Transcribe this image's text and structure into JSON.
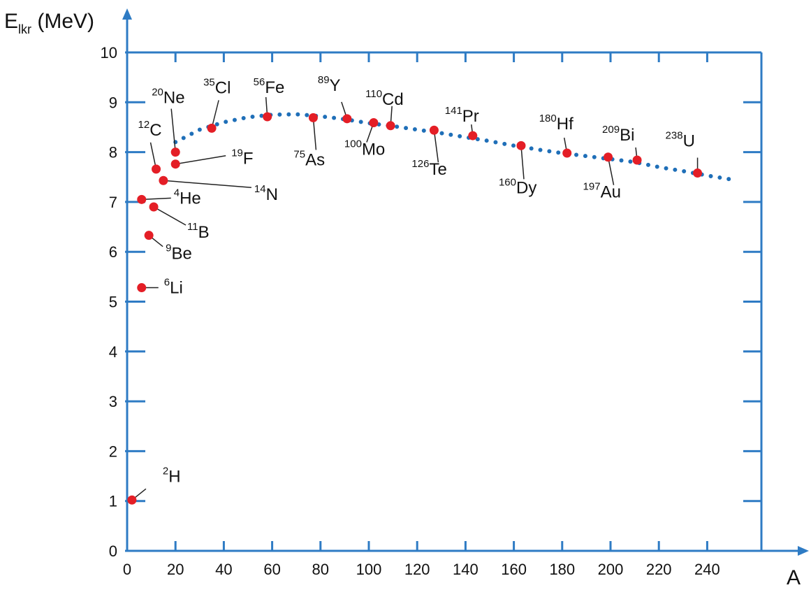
{
  "chart_data": {
    "type": "scatter",
    "title": "",
    "xlabel": "A",
    "ylabel": {
      "main": "E",
      "sub": "lkr",
      "unit": "(MeV)"
    },
    "xlim": [
      0,
      260
    ],
    "ylim": [
      0,
      10
    ],
    "xticks": [
      0,
      20,
      40,
      60,
      80,
      100,
      120,
      140,
      160,
      180,
      200,
      220,
      240
    ],
    "yticks": [
      0,
      1,
      2,
      3,
      4,
      5,
      6,
      7,
      8,
      9,
      10
    ],
    "grid": false,
    "colors": {
      "axis": "#2e7bc4",
      "points": "#e41e26",
      "curve": "#1f6fb8",
      "leader": "#222222"
    },
    "curve": {
      "name": "binding energy per nucleon trend (dotted)",
      "x": [
        20,
        30,
        40,
        50,
        60,
        70,
        80,
        90,
        100,
        110,
        120,
        130,
        140,
        150,
        160,
        170,
        180,
        190,
        200,
        210,
        220,
        230,
        240,
        250
      ],
      "y": [
        8.2,
        8.45,
        8.6,
        8.7,
        8.75,
        8.76,
        8.72,
        8.66,
        8.58,
        8.52,
        8.45,
        8.38,
        8.3,
        8.22,
        8.13,
        8.05,
        7.98,
        7.92,
        7.86,
        7.8,
        7.7,
        7.62,
        7.53,
        7.45
      ]
    },
    "series": [
      {
        "name": "nuclides",
        "points": [
          {
            "x": 2,
            "y": 1.02,
            "mass": "2",
            "symbol": "H"
          },
          {
            "x": 6,
            "y": 5.28,
            "mass": "6",
            "symbol": "Li"
          },
          {
            "x": 9,
            "y": 6.33,
            "mass": "9",
            "symbol": "Be"
          },
          {
            "x": 11,
            "y": 6.9,
            "mass": "11",
            "symbol": "B"
          },
          {
            "x": 6,
            "y": 7.05,
            "mass": "4",
            "symbol": "He"
          },
          {
            "x": 12,
            "y": 7.66,
            "mass": "12",
            "symbol": "C"
          },
          {
            "x": 15,
            "y": 7.43,
            "mass": "14",
            "symbol": "N"
          },
          {
            "x": 20,
            "y": 7.76,
            "mass": "19",
            "symbol": "F"
          },
          {
            "x": 20,
            "y": 8.0,
            "mass": "20",
            "symbol": "Ne"
          },
          {
            "x": 35,
            "y": 8.48,
            "mass": "35",
            "symbol": "Cl"
          },
          {
            "x": 58,
            "y": 8.71,
            "mass": "56",
            "symbol": "Fe"
          },
          {
            "x": 77,
            "y": 8.69,
            "mass": "75",
            "symbol": "As"
          },
          {
            "x": 91,
            "y": 8.67,
            "mass": "89",
            "symbol": "Y"
          },
          {
            "x": 102,
            "y": 8.59,
            "mass": "100",
            "symbol": "Mo"
          },
          {
            "x": 109,
            "y": 8.53,
            "mass": "110",
            "symbol": "Cd"
          },
          {
            "x": 127,
            "y": 8.44,
            "mass": "126",
            "symbol": "Te"
          },
          {
            "x": 143,
            "y": 8.33,
            "mass": "141",
            "symbol": "Pr"
          },
          {
            "x": 163,
            "y": 8.13,
            "mass": "160",
            "symbol": "Dy"
          },
          {
            "x": 182,
            "y": 7.98,
            "mass": "180",
            "symbol": "Hf"
          },
          {
            "x": 199,
            "y": 7.9,
            "mass": "197",
            "symbol": "Au"
          },
          {
            "x": 211,
            "y": 7.84,
            "mass": "209",
            "symbol": "Bi"
          },
          {
            "x": 236,
            "y": 7.58,
            "mass": "238",
            "symbol": "U"
          }
        ]
      }
    ]
  }
}
